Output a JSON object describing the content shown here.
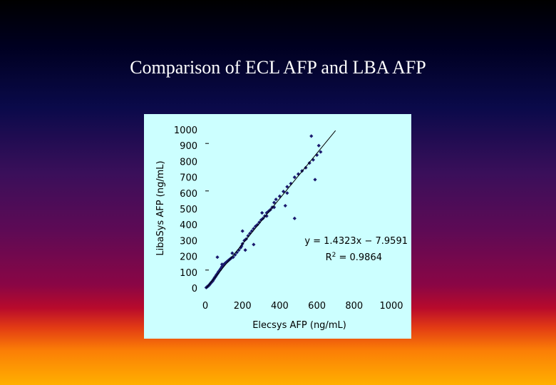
{
  "slide": {
    "title": "Comparison of ECL AFP and LBA AFP"
  },
  "chart_data": {
    "type": "scatter",
    "title": "",
    "xlabel": "Elecsys AFP (ng/mL)",
    "ylabel": "LibaSys AFP (ng/mL)",
    "xlim": [
      0,
      1000
    ],
    "ylim": [
      0,
      1000
    ],
    "xticks": [
      "0",
      "200",
      "400",
      "600",
      "800",
      "1000"
    ],
    "yticks": [
      "0",
      "100",
      "200",
      "300",
      "400",
      "500",
      "600",
      "700",
      "800",
      "900",
      "1000"
    ],
    "grid": false,
    "legend": "none",
    "marker_color": "#1a1a6e",
    "regression": {
      "slope": 1.4323,
      "intercept": -7.9591,
      "equation": "y = 1.4323x − 7.9591",
      "r2_label": "R",
      "r2_value": " = 0.9864",
      "x_range": [
        0,
        700
      ]
    },
    "points": [
      [
        5,
        3
      ],
      [
        8,
        6
      ],
      [
        10,
        8
      ],
      [
        12,
        10
      ],
      [
        15,
        12
      ],
      [
        18,
        15
      ],
      [
        20,
        18
      ],
      [
        22,
        20
      ],
      [
        25,
        25
      ],
      [
        28,
        30
      ],
      [
        30,
        32
      ],
      [
        33,
        36
      ],
      [
        35,
        40
      ],
      [
        38,
        42
      ],
      [
        40,
        45
      ],
      [
        42,
        50
      ],
      [
        45,
        55
      ],
      [
        48,
        60
      ],
      [
        50,
        65
      ],
      [
        52,
        68
      ],
      [
        55,
        72
      ],
      [
        58,
        78
      ],
      [
        60,
        82
      ],
      [
        62,
        86
      ],
      [
        65,
        90
      ],
      [
        68,
        95
      ],
      [
        70,
        100
      ],
      [
        72,
        104
      ],
      [
        75,
        108
      ],
      [
        78,
        112
      ],
      [
        80,
        116
      ],
      [
        82,
        120
      ],
      [
        85,
        125
      ],
      [
        88,
        130
      ],
      [
        90,
        135
      ],
      [
        92,
        138
      ],
      [
        95,
        142
      ],
      [
        98,
        145
      ],
      [
        100,
        150
      ],
      [
        105,
        155
      ],
      [
        110,
        160
      ],
      [
        115,
        165
      ],
      [
        120,
        170
      ],
      [
        125,
        175
      ],
      [
        130,
        180
      ],
      [
        135,
        185
      ],
      [
        140,
        190
      ],
      [
        150,
        195
      ],
      [
        160,
        210
      ],
      [
        170,
        225
      ],
      [
        180,
        240
      ],
      [
        190,
        255
      ],
      [
        195,
        265
      ],
      [
        200,
        280
      ],
      [
        210,
        300
      ],
      [
        220,
        310
      ],
      [
        230,
        330
      ],
      [
        240,
        345
      ],
      [
        250,
        360
      ],
      [
        260,
        375
      ],
      [
        270,
        390
      ],
      [
        280,
        400
      ],
      [
        290,
        415
      ],
      [
        300,
        430
      ],
      [
        310,
        440
      ],
      [
        320,
        455
      ],
      [
        330,
        475
      ],
      [
        340,
        485
      ],
      [
        350,
        495
      ],
      [
        360,
        510
      ],
      [
        370,
        540
      ],
      [
        380,
        560
      ],
      [
        400,
        580
      ],
      [
        420,
        610
      ],
      [
        440,
        640
      ],
      [
        460,
        660
      ],
      [
        480,
        700
      ],
      [
        500,
        720
      ],
      [
        520,
        740
      ],
      [
        540,
        760
      ],
      [
        560,
        790
      ],
      [
        580,
        810
      ],
      [
        600,
        840
      ],
      [
        620,
        860
      ],
      [
        65,
        195
      ],
      [
        90,
        150
      ],
      [
        200,
        360
      ],
      [
        215,
        240
      ],
      [
        260,
        275
      ],
      [
        305,
        475
      ],
      [
        370,
        510
      ],
      [
        440,
        600
      ],
      [
        590,
        685
      ],
      [
        570,
        960
      ],
      [
        610,
        900
      ],
      [
        480,
        440
      ],
      [
        430,
        520
      ],
      [
        330,
        455
      ],
      [
        145,
        220
      ]
    ]
  }
}
